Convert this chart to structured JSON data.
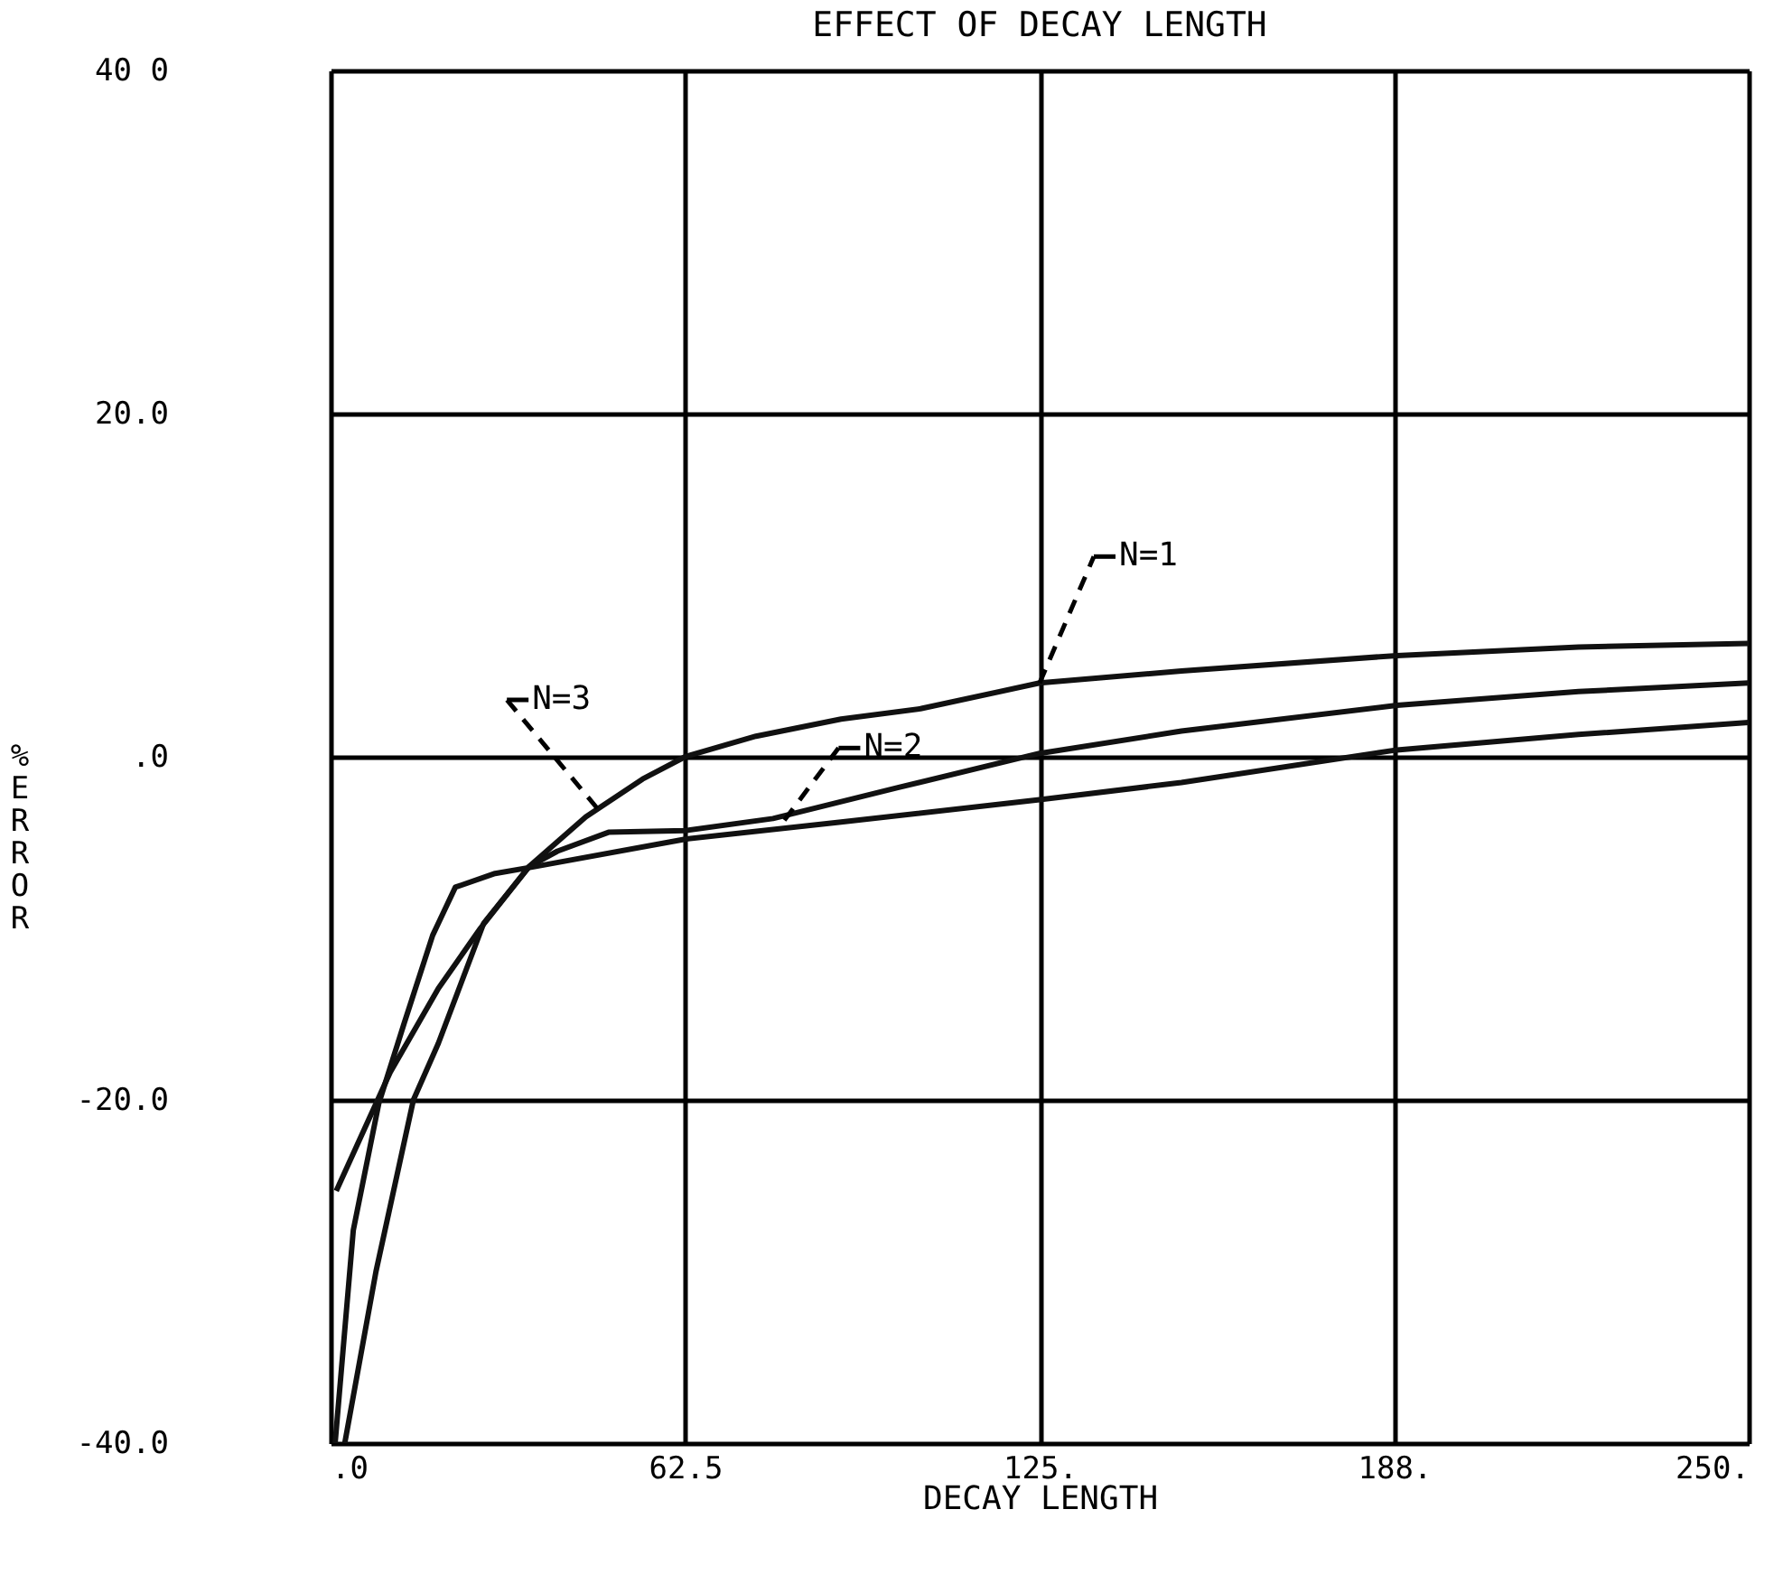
{
  "chart_data": {
    "type": "line",
    "title": "EFFECT OF DECAY LENGTH",
    "xlabel": "DECAY LENGTH",
    "ylabel": "% ERROR",
    "xlim": [
      0,
      250
    ],
    "ylim": [
      -40,
      40
    ],
    "xticks": [
      {
        "value": 0,
        "label": ".0"
      },
      62.5,
      {
        "value": 125,
        "label": "125."
      },
      {
        "value": 187.5,
        "label": "188."
      },
      {
        "value": 250,
        "label": "250."
      }
    ],
    "yticks": [
      {
        "value": -40,
        "label": "-40.0"
      },
      {
        "value": -20,
        "label": "-20.0"
      },
      {
        "value": 0,
        "label": ".0"
      },
      {
        "value": 20,
        "label": "20.0"
      },
      {
        "value": 40,
        "label": "40 0"
      }
    ],
    "grid": true,
    "line_style": "solid",
    "marker": "none",
    "series": [
      {
        "color": "#111111",
        "x": [
          2.5,
          8,
          14.6,
          19,
          27,
          35,
          45,
          55,
          62.5,
          75,
          90,
          104,
          125,
          150,
          188,
          220,
          250
        ],
        "values": [
          -40,
          -30,
          -20,
          -16.7,
          -9.7,
          -6.4,
          -3.5,
          -1.3,
          0,
          1.2,
          2.2,
          2.8,
          4.3,
          5,
          5.9,
          6.4,
          6.6
        ]
      },
      {
        "color": "#111111",
        "x": [
          1,
          10.5,
          19,
          26.4,
          35,
          40,
          49,
          62.5,
          78,
          100,
          125,
          150,
          188,
          220,
          250
        ],
        "values": [
          -25.3,
          -18.4,
          -13.5,
          -10,
          -6.4,
          -5.5,
          -4.4,
          -4.3,
          -3.6,
          -1.8,
          0.2,
          1.5,
          3,
          3.8,
          4.3
        ]
      },
      {
        "color": "#111111",
        "x": [
          0.8,
          4,
          8.5,
          13,
          18,
          22,
          29,
          36,
          62.5,
          90,
          125,
          150,
          188,
          220,
          250
        ],
        "values": [
          -40,
          -27.6,
          -20.2,
          -15.5,
          -10.4,
          -7.6,
          -6.8,
          -6.4,
          -4.8,
          -3.8,
          -2.5,
          -1.5,
          0.4,
          1.3,
          2
        ]
      }
    ],
    "annotations": [
      {
        "text": "N=1",
        "x": 125,
        "y": 4.3
      },
      {
        "text": "N=2",
        "x": 80,
        "y": -3.7
      },
      {
        "text": "N=3",
        "x": 47,
        "y": -3
      }
    ]
  }
}
